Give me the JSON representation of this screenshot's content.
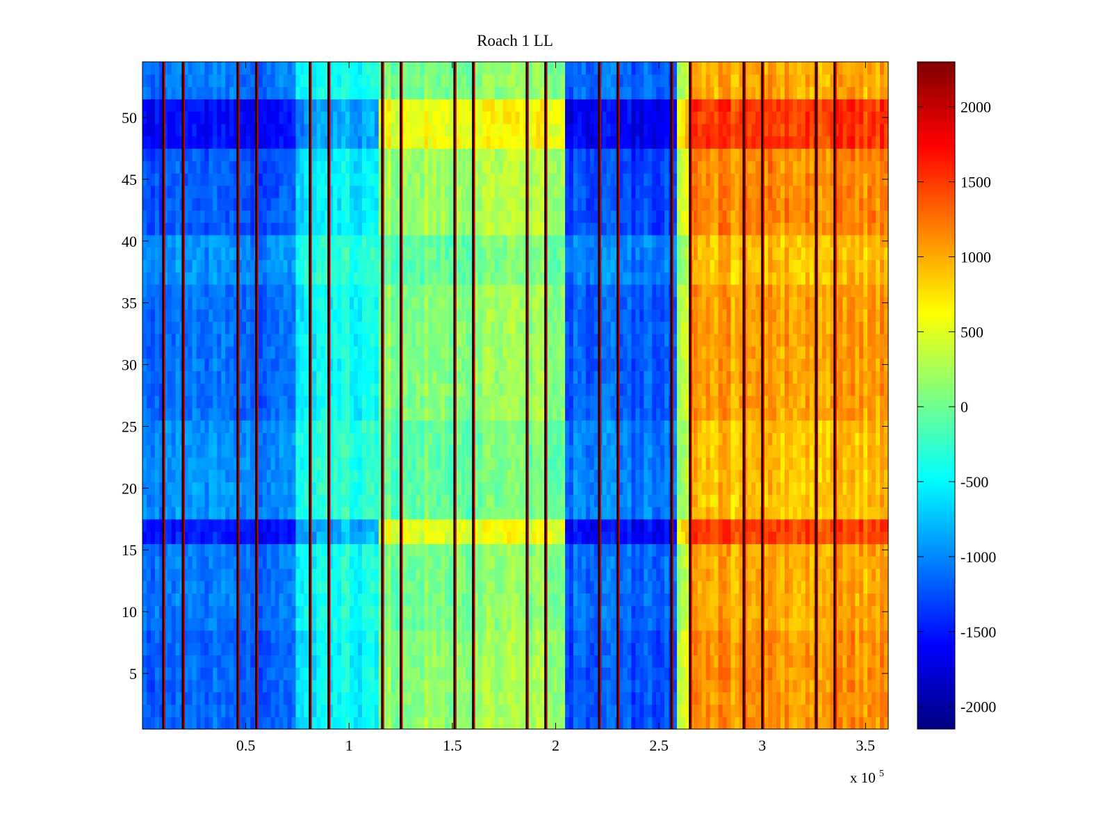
{
  "chart_data": {
    "type": "heatmap",
    "title": "Roach 1 LL",
    "xlabel": "",
    "ylabel": "",
    "x_exponent_label": {
      "base": "x 10",
      "exponent": "5"
    },
    "xlim": [
      0,
      361000
    ],
    "ylim": [
      0.5,
      54.5
    ],
    "x_ticks": [
      {
        "value": 50000,
        "label": "0.5"
      },
      {
        "value": 100000,
        "label": "1"
      },
      {
        "value": 150000,
        "label": "1.5"
      },
      {
        "value": 200000,
        "label": "2"
      },
      {
        "value": 250000,
        "label": "2.5"
      },
      {
        "value": 300000,
        "label": "3"
      },
      {
        "value": 350000,
        "label": "3.5"
      }
    ],
    "y_ticks": [
      {
        "value": 5,
        "label": "5"
      },
      {
        "value": 10,
        "label": "10"
      },
      {
        "value": 15,
        "label": "15"
      },
      {
        "value": 20,
        "label": "20"
      },
      {
        "value": 25,
        "label": "25"
      },
      {
        "value": 30,
        "label": "30"
      },
      {
        "value": 35,
        "label": "35"
      },
      {
        "value": 40,
        "label": "40"
      },
      {
        "value": 45,
        "label": "45"
      },
      {
        "value": 50,
        "label": "50"
      }
    ],
    "colorbar": {
      "colormap": "jet",
      "range": [
        -2150,
        2300
      ],
      "ticks": [
        {
          "value": -2000,
          "label": "-2000"
        },
        {
          "value": -1500,
          "label": "-1500"
        },
        {
          "value": -1000,
          "label": "-1000"
        },
        {
          "value": -500,
          "label": "-500"
        },
        {
          "value": 0,
          "label": "0"
        },
        {
          "value": 500,
          "label": "500"
        },
        {
          "value": 1000,
          "label": "1000"
        },
        {
          "value": 1500,
          "label": "1500"
        },
        {
          "value": 2000,
          "label": "2000"
        }
      ]
    },
    "rows": 54,
    "column_segments": [
      {
        "x_start": 0,
        "x_end": 74000,
        "mean": -1000
      },
      {
        "x_start": 74000,
        "x_end": 115000,
        "mean": -300
      },
      {
        "x_start": 115000,
        "x_end": 160000,
        "mean": -50
      },
      {
        "x_start": 160000,
        "x_end": 205000,
        "mean": 0
      },
      {
        "x_start": 205000,
        "x_end": 258000,
        "mean": -1050
      },
      {
        "x_start": 258000,
        "x_end": 265000,
        "mean": 200
      },
      {
        "x_start": 265000,
        "x_end": 361000,
        "mean": 900
      }
    ],
    "row_effects": [
      {
        "y_start": 0.5,
        "y_end": 8.5,
        "effect": 200
      },
      {
        "y_start": 8.5,
        "y_end": 15.5,
        "effect": 100
      },
      {
        "y_start": 15.5,
        "y_end": 17.5,
        "effect": 550
      },
      {
        "y_start": 17.5,
        "y_end": 25.5,
        "effect": 0
      },
      {
        "y_start": 25.5,
        "y_end": 36.5,
        "effect": 150
      },
      {
        "y_start": 36.5,
        "y_end": 40.5,
        "effect": 0
      },
      {
        "y_start": 40.5,
        "y_end": 47.5,
        "effect": 250
      },
      {
        "y_start": 47.5,
        "y_end": 51.5,
        "effect": 600
      },
      {
        "y_start": 51.5,
        "y_end": 54.5,
        "effect": 100
      }
    ],
    "stimulus_lines_x": [
      10000,
      19500,
      46000,
      55000,
      81000,
      90000,
      116000,
      125000,
      151000,
      160000,
      186000,
      195000,
      221000,
      230000,
      256000,
      265000,
      291000,
      300000,
      326000,
      335000
    ]
  }
}
